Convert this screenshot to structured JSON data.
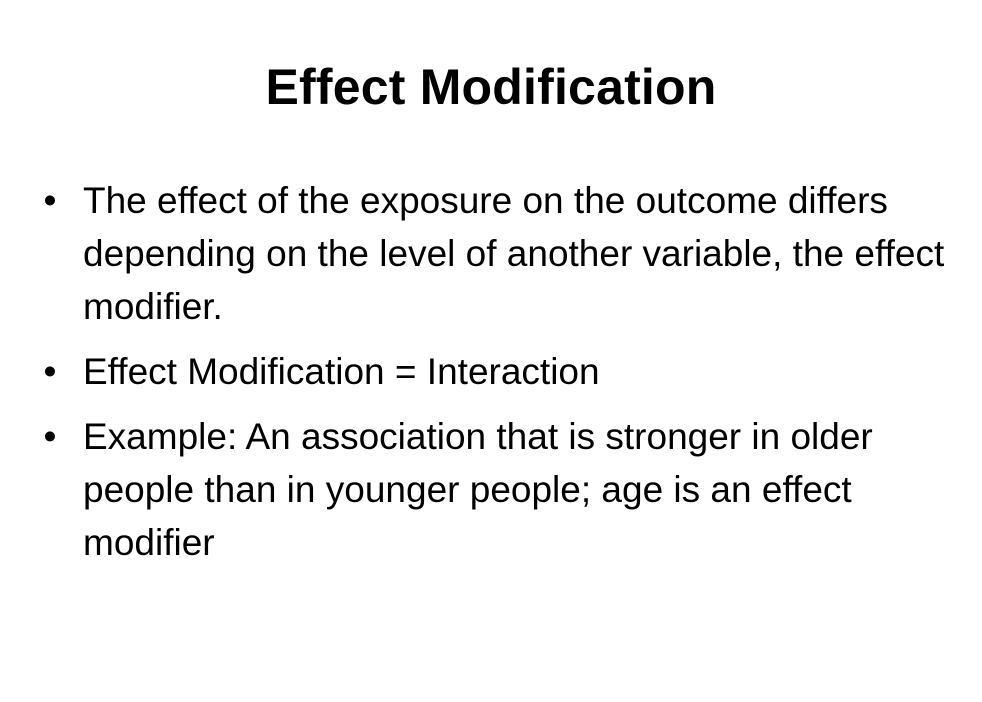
{
  "slide": {
    "title": "Effect Modification",
    "bullet_glyph": "•",
    "bullets": [
      "The effect of the exposure on the outcome differs depending on the level of another variable, the effect modifier.",
      "Effect Modification = Interaction",
      "Example: An association that is stronger in older people than in younger people; age is an effect modifier"
    ]
  }
}
